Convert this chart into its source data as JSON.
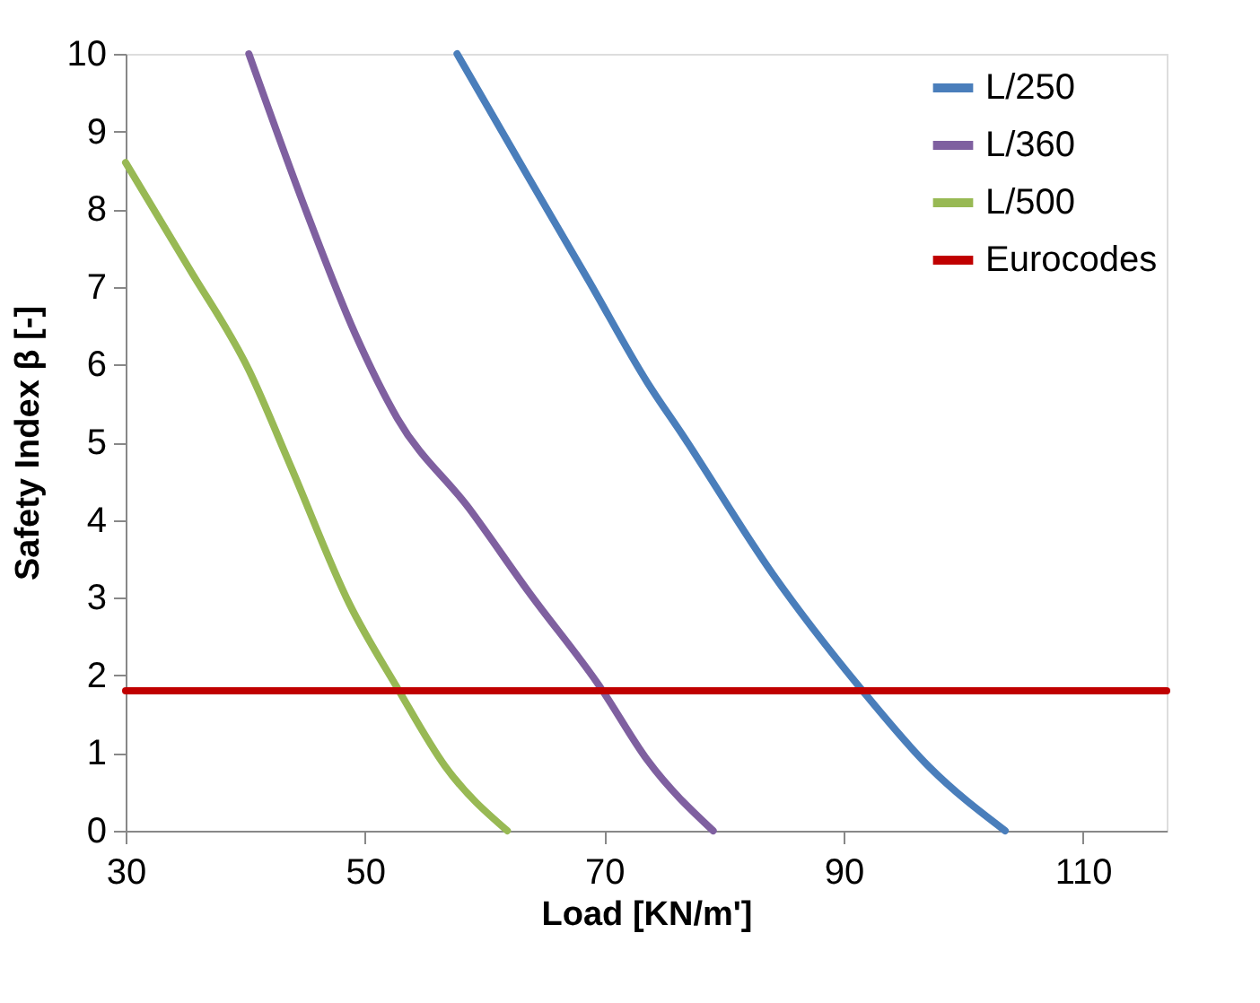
{
  "chart_data": {
    "type": "line",
    "xlabel": "Load  [KN/m']",
    "ylabel": "Safety Index β [-]",
    "xlim": [
      30,
      117
    ],
    "xticks": [
      30,
      50,
      70,
      90,
      110
    ],
    "ylim": [
      0,
      10
    ],
    "yticks": [
      0,
      1,
      2,
      3,
      4,
      5,
      6,
      7,
      8,
      9,
      10
    ],
    "grid": false,
    "legend": "top right",
    "marker": "none",
    "line_style": "solid",
    "series": [
      {
        "name": "L/250",
        "color": "#4a7ebb",
        "x": [
          57.7,
          63.7,
          68.7,
          73.6,
          76.6,
          84.1,
          91.6,
          97.1,
          103.5
        ],
        "values": [
          10,
          8.4,
          7.08,
          5.77,
          5.08,
          3.3,
          1.8,
          0.83,
          0
        ]
      },
      {
        "name": "L/360",
        "color": "#7f60a0",
        "x": [
          40.3,
          45.2,
          49.2,
          52.7,
          58.7,
          63.7,
          69.7,
          73.6,
          79.1
        ],
        "values": [
          10,
          7.93,
          6.39,
          5.31,
          4.15,
          3.07,
          1.84,
          0.91,
          0
        ]
      },
      {
        "name": "L/500",
        "color": "#98b954",
        "x": [
          30,
          35.3,
          40.3,
          43.8,
          48.7,
          52.7,
          56.7,
          61.9
        ],
        "values": [
          8.6,
          7.24,
          5.93,
          4.69,
          2.92,
          1.84,
          0.83,
          0
        ]
      },
      {
        "name": "Eurocodes",
        "color": "#c00000",
        "x": [
          30,
          117
        ],
        "values": [
          1.8,
          1.8
        ]
      }
    ]
  }
}
